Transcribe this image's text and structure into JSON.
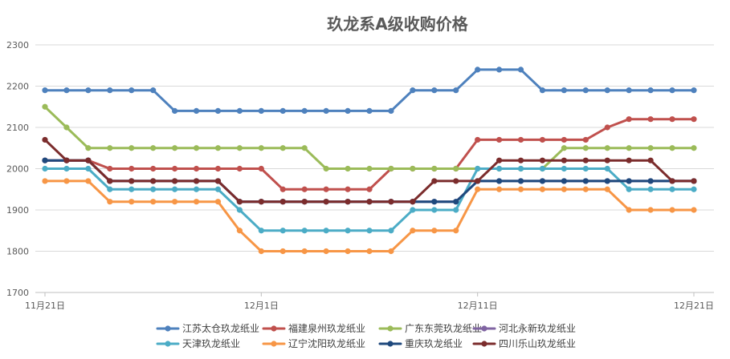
{
  "chart_data": {
    "type": "line",
    "title": "玖龙系A级收购价格",
    "xlabel": "",
    "ylabel": "",
    "ylim": [
      1700,
      2300
    ],
    "yticks": [
      1700,
      1800,
      1900,
      2000,
      2100,
      2200,
      2300
    ],
    "xticks": [
      {
        "index": 0,
        "label": "11月21日"
      },
      {
        "index": 10,
        "label": "12月1日"
      },
      {
        "index": 20,
        "label": "12月11日"
      },
      {
        "index": 30,
        "label": "12月21日"
      }
    ],
    "x": [
      "11月21日",
      "11月22日",
      "11月23日",
      "11月24日",
      "11月25日",
      "11月26日",
      "11月27日",
      "11月28日",
      "11月29日",
      "11月30日",
      "12月1日",
      "12月2日",
      "12月3日",
      "12月4日",
      "12月5日",
      "12月6日",
      "12月7日",
      "12月8日",
      "12月9日",
      "12月10日",
      "12月11日",
      "12月12日",
      "12月13日",
      "12月14日",
      "12月15日",
      "12月16日",
      "12月17日",
      "12月18日",
      "12月19日",
      "12月20日",
      "12月21日"
    ],
    "grid": "horizontal",
    "legend_position": "bottom",
    "series": [
      {
        "name": "江苏太仓玖龙纸业",
        "color": "#4e81bd",
        "values": [
          2190,
          2190,
          2190,
          2190,
          2190,
          2190,
          2140,
          2140,
          2140,
          2140,
          2140,
          2140,
          2140,
          2140,
          2140,
          2140,
          2140,
          2190,
          2190,
          2190,
          2240,
          2240,
          2240,
          2190,
          2190,
          2190,
          2190,
          2190,
          2190,
          2190,
          2190
        ]
      },
      {
        "name": "福建泉州玖龙纸业",
        "color": "#c0504d",
        "values": [
          2020,
          2020,
          2020,
          2000,
          2000,
          2000,
          2000,
          2000,
          2000,
          2000,
          2000,
          1950,
          1950,
          1950,
          1950,
          1950,
          2000,
          2000,
          2000,
          2000,
          2070,
          2070,
          2070,
          2070,
          2070,
          2070,
          2100,
          2120,
          2120,
          2120,
          2120
        ]
      },
      {
        "name": "广东东莞玖龙纸业",
        "color": "#9bbb59",
        "values": [
          2150,
          2100,
          2050,
          2050,
          2050,
          2050,
          2050,
          2050,
          2050,
          2050,
          2050,
          2050,
          2050,
          2000,
          2000,
          2000,
          2000,
          2000,
          2000,
          2000,
          2000,
          2000,
          2000,
          2000,
          2050,
          2050,
          2050,
          2050,
          2050,
          2050,
          2050
        ]
      },
      {
        "name": "河北永新玖龙纸业",
        "color": "#8064a2",
        "values": [
          2020,
          2020,
          2020,
          1970,
          1970,
          1970,
          1970,
          1970,
          1970,
          1920,
          1920,
          1920,
          1920,
          1920,
          1920,
          1920,
          1920,
          1920,
          1920,
          1920,
          1970,
          1970,
          1970,
          1970,
          1970,
          1970,
          1970,
          1970,
          1970,
          1970,
          1970
        ]
      },
      {
        "name": "天津玖龙纸业",
        "color": "#4bacc6",
        "values": [
          2000,
          2000,
          2000,
          1950,
          1950,
          1950,
          1950,
          1950,
          1950,
          1900,
          1850,
          1850,
          1850,
          1850,
          1850,
          1850,
          1850,
          1900,
          1900,
          1900,
          2000,
          2000,
          2000,
          2000,
          2000,
          2000,
          2000,
          1950,
          1950,
          1950,
          1950
        ]
      },
      {
        "name": "辽宁沈阳玖龙纸业",
        "color": "#f79646",
        "values": [
          1970,
          1970,
          1970,
          1920,
          1920,
          1920,
          1920,
          1920,
          1920,
          1850,
          1800,
          1800,
          1800,
          1800,
          1800,
          1800,
          1800,
          1850,
          1850,
          1850,
          1950,
          1950,
          1950,
          1950,
          1950,
          1950,
          1950,
          1900,
          1900,
          1900,
          1900
        ]
      },
      {
        "name": "重庆玖龙纸业",
        "color": "#1f497d",
        "values": [
          2020,
          2020,
          2020,
          1970,
          1970,
          1970,
          1970,
          1970,
          1970,
          1920,
          1920,
          1920,
          1920,
          1920,
          1920,
          1920,
          1920,
          1920,
          1920,
          1920,
          1970,
          1970,
          1970,
          1970,
          1970,
          1970,
          1970,
          1970,
          1970,
          1970,
          1970
        ]
      },
      {
        "name": "四川乐山玖龙纸业",
        "color": "#7b2c2c",
        "values": [
          2070,
          2020,
          2020,
          1970,
          1970,
          1970,
          1970,
          1970,
          1970,
          1920,
          1920,
          1920,
          1920,
          1920,
          1920,
          1920,
          1920,
          1920,
          1970,
          1970,
          1970,
          2020,
          2020,
          2020,
          2020,
          2020,
          2020,
          2020,
          2020,
          1970,
          1970
        ]
      }
    ]
  }
}
